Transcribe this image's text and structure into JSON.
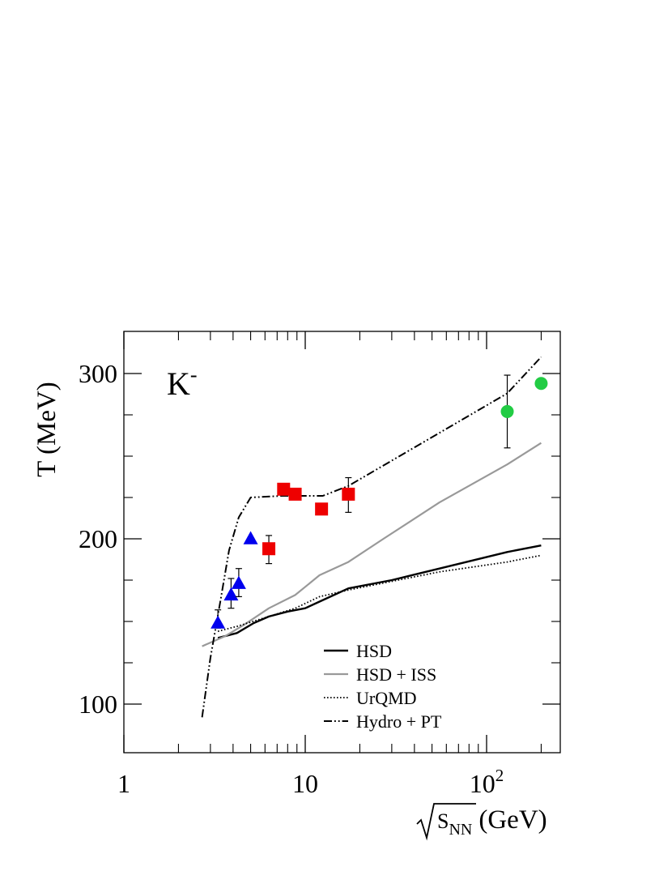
{
  "chart_data": {
    "type": "line",
    "panel_label": "K",
    "panel_label_sup": "-",
    "xlabel_radical_sub": "S",
    "xlabel_radical_subsub": "NN",
    "xlabel_unit": "(GeV)",
    "ylabel": "T (MeV)",
    "x_scale": "log",
    "xlim": [
      1,
      250
    ],
    "ylim": [
      75,
      325
    ],
    "grid": false,
    "x_ticks": [
      {
        "value": 1,
        "label": "1"
      },
      {
        "value": 10,
        "label": "10"
      },
      {
        "value": 100,
        "label": "10",
        "sup": "2"
      }
    ],
    "y_ticks": [
      {
        "value": 100,
        "label": "100"
      },
      {
        "value": 200,
        "label": "200"
      },
      {
        "value": 300,
        "label": "300"
      }
    ],
    "y_minor_ticks": [
      125,
      150,
      175,
      225,
      250,
      275
    ],
    "legend_position": "bottom-right",
    "lines": [
      {
        "name": "HSD",
        "style": "solid",
        "color": "#000000",
        "width": 2.4,
        "points": [
          [
            3.3,
            140
          ],
          [
            4.2,
            143
          ],
          [
            5.2,
            149
          ],
          [
            6.3,
            153
          ],
          [
            8.0,
            156
          ],
          [
            10.0,
            158
          ],
          [
            12.0,
            162
          ],
          [
            17.3,
            170
          ],
          [
            30,
            175
          ],
          [
            55,
            182
          ],
          [
            130,
            192
          ],
          [
            200,
            196
          ]
        ]
      },
      {
        "name": "HSD + ISS",
        "style": "solid",
        "color": "#999999",
        "width": 2.2,
        "points": [
          [
            2.7,
            135
          ],
          [
            3.6,
            141
          ],
          [
            4.6,
            148
          ],
          [
            6.3,
            158
          ],
          [
            8.8,
            166
          ],
          [
            12.0,
            178
          ],
          [
            17.3,
            186
          ],
          [
            27,
            200
          ],
          [
            55,
            222
          ],
          [
            130,
            245
          ],
          [
            200,
            258
          ]
        ]
      },
      {
        "name": "UrQMD",
        "style": "dotted",
        "color": "#000000",
        "width": 1.8,
        "points": [
          [
            3.3,
            144
          ],
          [
            4.2,
            147
          ],
          [
            6.3,
            153
          ],
          [
            8.8,
            158
          ],
          [
            12.0,
            165
          ],
          [
            17.3,
            169
          ],
          [
            55,
            180
          ],
          [
            130,
            186
          ],
          [
            200,
            190
          ]
        ]
      },
      {
        "name": "Hydro + PT",
        "style": "dashdot",
        "color": "#000000",
        "width": 2.0,
        "points": [
          [
            2.7,
            92
          ],
          [
            3.0,
            128
          ],
          [
            3.4,
            162
          ],
          [
            3.8,
            193
          ],
          [
            4.3,
            213
          ],
          [
            5.0,
            225
          ],
          [
            7.5,
            226
          ],
          [
            12.5,
            226
          ],
          [
            17.3,
            232
          ],
          [
            130,
            288
          ],
          [
            200,
            310
          ]
        ]
      }
    ],
    "markers": [
      {
        "shape": "triangle",
        "color": "#0000ee",
        "points": [
          {
            "x": 3.3,
            "y": 149,
            "err_lo": 3,
            "err_hi": 8
          },
          {
            "x": 3.9,
            "y": 166,
            "err_lo": 8,
            "err_hi": 10
          },
          {
            "x": 4.3,
            "y": 173,
            "err_lo": 8,
            "err_hi": 9
          },
          {
            "x": 5.0,
            "y": 200,
            "err_lo": 0,
            "err_hi": 0
          }
        ]
      },
      {
        "shape": "square",
        "color": "#ee0000",
        "points": [
          {
            "x": 6.3,
            "y": 194,
            "err_lo": 9,
            "err_hi": 8
          },
          {
            "x": 7.6,
            "y": 230,
            "err_lo": 0,
            "err_hi": 0
          },
          {
            "x": 8.8,
            "y": 227,
            "err_lo": 0,
            "err_hi": 0
          },
          {
            "x": 12.3,
            "y": 218,
            "err_lo": 0,
            "err_hi": 0
          },
          {
            "x": 17.3,
            "y": 227,
            "err_lo": 11,
            "err_hi": 10
          }
        ]
      },
      {
        "shape": "circle",
        "color": "#22cc44",
        "points": [
          {
            "x": 130,
            "y": 277,
            "err_lo": 22,
            "err_hi": 22
          },
          {
            "x": 200,
            "y": 294,
            "err_lo": 0,
            "err_hi": 0
          }
        ]
      }
    ]
  }
}
